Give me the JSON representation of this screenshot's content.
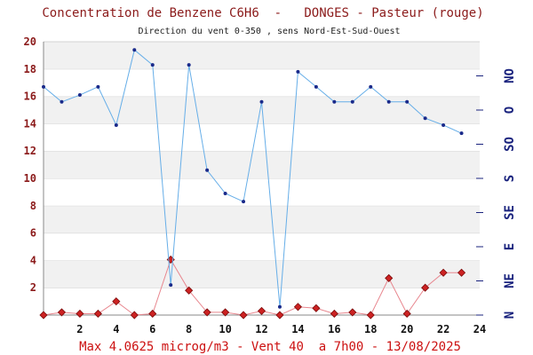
{
  "chart_data": {
    "type": "line",
    "title": "Concentration de Benzene C6H6  -   DONGES - Pasteur (rouge)",
    "subtitle": "Direction du vent 0-350 , sens Nord-Est-Sud-Ouest",
    "footer": "Max 4.0625 microg/m3 - Vent 40  a 7h00 - 13/08/2025",
    "xlim": [
      0,
      24
    ],
    "ylim": [
      0,
      20
    ],
    "x_ticks": [
      "2",
      "4",
      "6",
      "8",
      "10",
      "12",
      "14",
      "16",
      "18",
      "20",
      "22",
      "24"
    ],
    "y_ticks": [
      "2",
      "4",
      "6",
      "8",
      "10",
      "12",
      "14",
      "16",
      "18",
      "20"
    ],
    "wind_ticks": [
      "N",
      "NE",
      "E",
      "SE",
      "S",
      "SO",
      "O",
      "NO"
    ],
    "grid": true,
    "series": [
      {
        "name": "",
        "color": "#cc2222",
        "marker": "diamond",
        "x": [
          0,
          1,
          2,
          3,
          4,
          5,
          6,
          7,
          8,
          9,
          10,
          11,
          12,
          13,
          14,
          15,
          16,
          17,
          18,
          19,
          20,
          21,
          22,
          23
        ],
        "values": [
          0.0,
          0.2,
          0.1,
          0.1,
          1.0,
          0.0,
          0.1,
          4.06,
          1.8,
          0.2,
          0.2,
          0.0,
          0.3,
          0.0,
          0.6,
          0.5,
          0.1,
          0.2,
          0.0,
          2.7,
          0.1,
          2.0,
          3.1,
          3.1
        ]
      },
      {
        "name": "",
        "color": "#3399dd",
        "marker": "dot",
        "x": [
          0,
          1,
          2,
          3,
          4,
          5,
          6,
          7,
          8,
          9,
          10,
          11,
          12,
          13,
          14,
          15,
          16,
          17,
          18,
          19,
          20,
          21,
          22,
          23
        ],
        "values": [
          16.7,
          15.6,
          16.1,
          16.7,
          13.9,
          19.4,
          18.3,
          2.2,
          18.3,
          10.6,
          8.9,
          8.3,
          15.6,
          0.6,
          17.8,
          16.7,
          15.6,
          15.6,
          16.7,
          15.6,
          15.6,
          14.4,
          13.9,
          13.3
        ]
      }
    ]
  }
}
